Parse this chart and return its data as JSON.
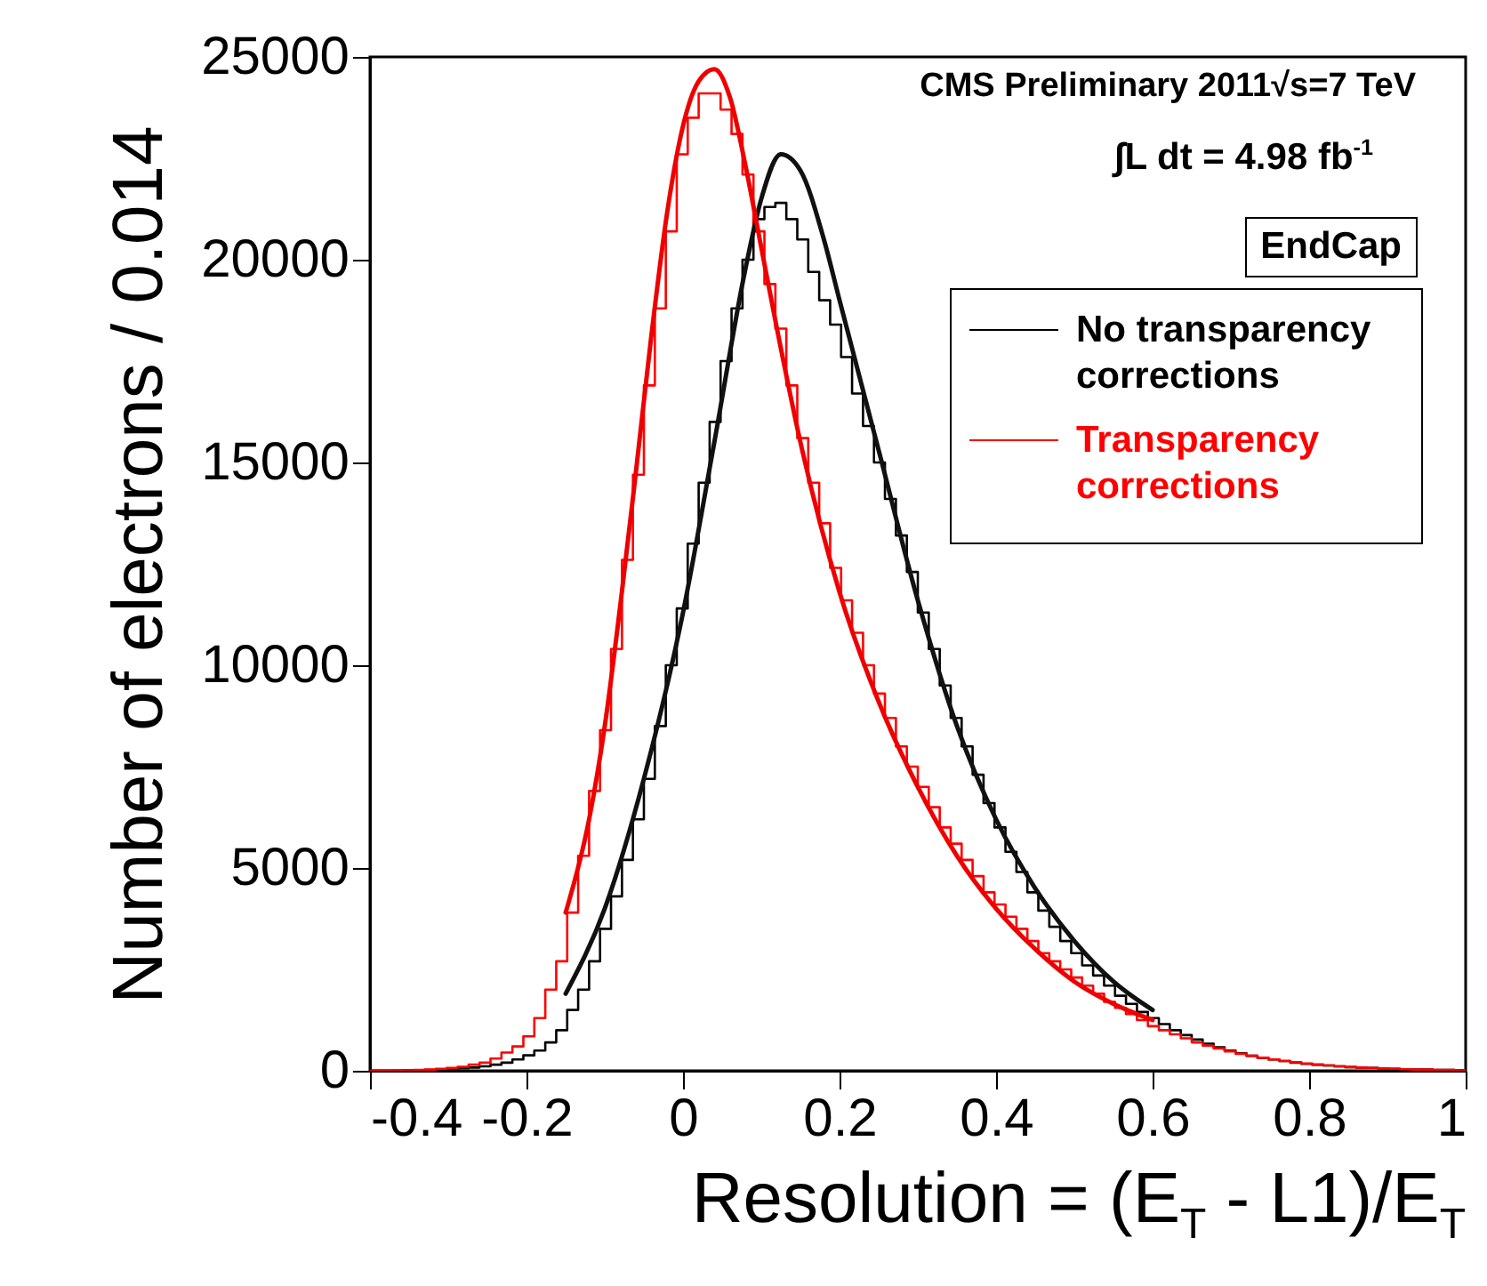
{
  "chart_data": {
    "type": "histogram",
    "xlabel": "Resolution = (E$_{T}$ - L1)/E$_{T}$",
    "ylabel": "Number of electrons / 0.014",
    "annotations": [
      "CMS Preliminary 2011√s=7 TeV",
      "∫L dt = 4.98 fb$^{-1}$",
      "EndCap"
    ],
    "xlim": [
      -0.4,
      1
    ],
    "xticks": [
      -0.4,
      -0.2,
      0,
      0.2,
      0.4,
      0.6,
      0.8,
      1
    ],
    "ylim": [
      0,
      25000
    ],
    "yticks": [
      0,
      5000,
      10000,
      15000,
      20000,
      25000
    ],
    "grid": false,
    "legend": "top right",
    "bins": [
      -0.4,
      -0.386,
      -0.372,
      -0.358,
      -0.344,
      -0.33,
      -0.316,
      -0.302,
      -0.288,
      -0.274,
      -0.26,
      -0.246,
      -0.232,
      -0.218,
      -0.204,
      -0.19,
      -0.176,
      -0.162,
      -0.148,
      -0.134,
      -0.12,
      -0.106,
      -0.092,
      -0.078,
      -0.064,
      -0.05,
      -0.036,
      -0.022,
      -0.008,
      0.006,
      0.02,
      0.034,
      0.048,
      0.062,
      0.076,
      0.09,
      0.104,
      0.118,
      0.132,
      0.146,
      0.16,
      0.174,
      0.188,
      0.202,
      0.216,
      0.23,
      0.244,
      0.258,
      0.272,
      0.286,
      0.3,
      0.314,
      0.328,
      0.342,
      0.356,
      0.37,
      0.384,
      0.398,
      0.412,
      0.426,
      0.44,
      0.454,
      0.468,
      0.482,
      0.496,
      0.51,
      0.524,
      0.538,
      0.552,
      0.566,
      0.58,
      0.594,
      0.608,
      0.622,
      0.636,
      0.65,
      0.664,
      0.678,
      0.692,
      0.706,
      0.72,
      0.734,
      0.748,
      0.762,
      0.776,
      0.79,
      0.804,
      0.818,
      0.832,
      0.846,
      0.86,
      0.874,
      0.888,
      0.902,
      0.916,
      0.93,
      0.944,
      0.958,
      0.972,
      0.986,
      1.0
    ],
    "series": [
      {
        "name": "No transparency corrections",
        "color": "#000000",
        "values": [
          0,
          0,
          0,
          10,
          10,
          20,
          30,
          40,
          60,
          80,
          110,
          150,
          200,
          280,
          380,
          500,
          700,
          1000,
          1500,
          2000,
          2700,
          3500,
          4300,
          5200,
          6200,
          7200,
          8500,
          10000,
          11400,
          13000,
          14500,
          16000,
          17500,
          18800,
          20000,
          21000,
          21300,
          21400,
          21000,
          20500,
          19700,
          19000,
          18400,
          17600,
          16700,
          15900,
          15000,
          14100,
          13200,
          12300,
          11300,
          10400,
          9500,
          8700,
          8000,
          7300,
          6600,
          6000,
          5400,
          4900,
          4400,
          3950,
          3550,
          3200,
          2900,
          2600,
          2350,
          2100,
          1850,
          1650,
          1450,
          1300,
          1150,
          1000,
          880,
          770,
          670,
          580,
          500,
          430,
          370,
          320,
          280,
          240,
          200,
          170,
          150,
          130,
          110,
          90,
          80,
          70,
          60,
          50,
          40,
          30,
          30,
          20,
          20,
          10
        ]
      },
      {
        "name": "Transparency corrections",
        "color": "#ff0000",
        "values": [
          0,
          0,
          10,
          10,
          20,
          30,
          50,
          70,
          100,
          150,
          200,
          300,
          450,
          600,
          850,
          1300,
          2000,
          2700,
          3900,
          5300,
          6900,
          8400,
          10400,
          12600,
          14700,
          16900,
          18800,
          20700,
          22600,
          23500,
          24100,
          24100,
          23700,
          23100,
          22100,
          20700,
          19400,
          18300,
          16900,
          15600,
          14500,
          13500,
          12400,
          11600,
          10800,
          10000,
          9300,
          8700,
          8000,
          7500,
          7000,
          6500,
          6000,
          5600,
          5200,
          4800,
          4400,
          4100,
          3800,
          3500,
          3200,
          2900,
          2700,
          2500,
          2300,
          2100,
          1900,
          1700,
          1550,
          1400,
          1250,
          1100,
          1000,
          900,
          800,
          700,
          620,
          550,
          480,
          420,
          370,
          320,
          280,
          240,
          210,
          180,
          150,
          130,
          110,
          90,
          80,
          70,
          60,
          50,
          40,
          30,
          30,
          20,
          20,
          10
        ]
      },
      {
        "type": "line",
        "color": "#111111",
        "x": [
          -0.15,
          -0.1,
          -0.05,
          0,
          0.04,
          0.08,
          0.1,
          0.125,
          0.15,
          0.18,
          0.2,
          0.25,
          0.3,
          0.35,
          0.4,
          0.45,
          0.5,
          0.55,
          0.6
        ],
        "values": [
          1900,
          4000,
          7200,
          11300,
          15500,
          19800,
          21500,
          22600,
          22200,
          20500,
          19000,
          15300,
          11600,
          8500,
          6200,
          4500,
          3200,
          2200,
          1500
        ]
      },
      {
        "type": "line",
        "color": "#ee0000",
        "x": [
          -0.15,
          -0.12,
          -0.1,
          -0.08,
          -0.06,
          -0.04,
          -0.02,
          0,
          0.02,
          0.04,
          0.06,
          0.08,
          0.1,
          0.12,
          0.15,
          0.2,
          0.25,
          0.3,
          0.35,
          0.4,
          0.45,
          0.5,
          0.55,
          0.6
        ],
        "values": [
          3900,
          6200,
          8500,
          11500,
          14800,
          18200,
          21200,
          23300,
          24400,
          24700,
          24000,
          22300,
          20300,
          18300,
          15500,
          11800,
          9100,
          7000,
          5300,
          4000,
          3000,
          2200,
          1650,
          1250
        ]
      }
    ]
  }
}
